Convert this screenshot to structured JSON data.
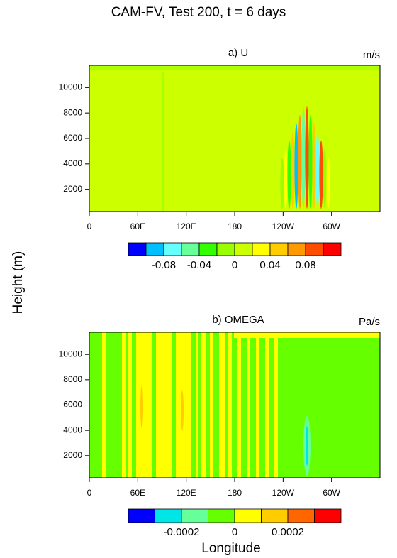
{
  "title": "CAM-FV, Test 200, t = 6 days",
  "ylabel": "Height (m)",
  "xlabel": "Longitude",
  "chart_data": [
    {
      "type": "contour",
      "title": "a) U",
      "units": "m/s",
      "xlim": [
        0,
        360
      ],
      "xticks": [
        0,
        {
          "value": 60,
          "label": "60E"
        },
        {
          "value": 120,
          "label": "120E"
        },
        180,
        {
          "value": 240,
          "label": "120W"
        },
        {
          "value": 300,
          "label": "60W"
        }
      ],
      "ylim": [
        250,
        11750
      ],
      "yticks": [
        2000,
        4000,
        6000,
        8000,
        10000
      ],
      "colorbar": {
        "range": [
          -0.12,
          0.12
        ],
        "ticks": [
          -0.08,
          -0.04,
          0,
          0.04,
          0.08
        ],
        "colors": [
          "#0000ff",
          "#00bfff",
          "#66ffff",
          "#66ff99",
          "#33ff00",
          "#99ff00",
          "#ccff00",
          "#ffff00",
          "#ffcc00",
          "#ff9900",
          "#ff4d00",
          "#ff0000"
        ]
      }
    },
    {
      "type": "contour",
      "title": "b) OMEGA",
      "units": "Pa/s",
      "xlim": [
        0,
        360
      ],
      "xticks": [
        0,
        {
          "value": 60,
          "label": "60E"
        },
        {
          "value": 120,
          "label": "120E"
        },
        180,
        {
          "value": 240,
          "label": "120W"
        },
        {
          "value": 300,
          "label": "60W"
        }
      ],
      "ylim": [
        250,
        11750
      ],
      "yticks": [
        2000,
        4000,
        6000,
        8000,
        10000
      ],
      "colorbar": {
        "range": [
          -0.0004,
          0.0004
        ],
        "ticks": [
          -0.0002,
          0,
          0.0002
        ],
        "colors": [
          "#0000ff",
          "#00e6e6",
          "#66ff99",
          "#66ff00",
          "#ffff00",
          "#ffcc00",
          "#ff6600",
          "#ff0000"
        ]
      }
    }
  ]
}
